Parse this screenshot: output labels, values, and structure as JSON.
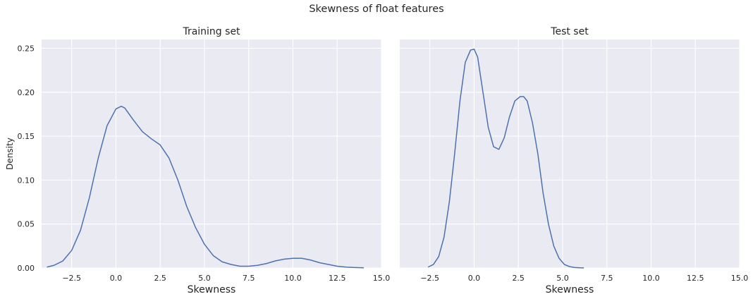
{
  "figure": {
    "suptitle": "Skewness of float features"
  },
  "colors": {
    "panel_bg": "#eaeaf2",
    "grid": "#ffffff",
    "line": "#4c72b0"
  },
  "chart_data": [
    {
      "type": "line",
      "title": "Training set",
      "xlabel": "Skewness",
      "ylabel": "Density",
      "xlim": [
        -4.2,
        15.0
      ],
      "ylim": [
        0.0,
        0.26
      ],
      "xticks": [
        -2.5,
        0.0,
        2.5,
        5.0,
        7.5,
        10.0,
        12.5,
        15.0
      ],
      "xtick_labels": [
        "−2.5",
        "0.0",
        "2.5",
        "5.0",
        "7.5",
        "10.0",
        "12.5",
        "15.0"
      ],
      "yticks": [
        0.0,
        0.05,
        0.1,
        0.15,
        0.2,
        0.25
      ],
      "ytick_labels": [
        "0.00",
        "0.05",
        "0.10",
        "0.15",
        "0.20",
        "0.25"
      ],
      "grid": true,
      "series": [
        {
          "x": [
            -3.9,
            -3.5,
            -3.0,
            -2.5,
            -2.0,
            -1.5,
            -1.0,
            -0.5,
            0.0,
            0.3,
            0.5,
            1.0,
            1.5,
            2.0,
            2.5,
            3.0,
            3.5,
            4.0,
            4.5,
            5.0,
            5.5,
            6.0,
            6.5,
            7.0,
            7.5,
            8.0,
            8.5,
            9.0,
            9.5,
            10.0,
            10.5,
            11.0,
            11.5,
            12.0,
            12.5,
            13.0,
            13.5,
            14.0
          ],
          "y": [
            0.001,
            0.003,
            0.008,
            0.02,
            0.043,
            0.08,
            0.125,
            0.162,
            0.181,
            0.184,
            0.182,
            0.168,
            0.155,
            0.147,
            0.14,
            0.125,
            0.1,
            0.07,
            0.046,
            0.027,
            0.014,
            0.007,
            0.004,
            0.002,
            0.002,
            0.003,
            0.005,
            0.008,
            0.01,
            0.011,
            0.011,
            0.009,
            0.006,
            0.004,
            0.002,
            0.001,
            0.0005,
            0.0002
          ]
        }
      ]
    },
    {
      "type": "line",
      "title": "Test set",
      "xlabel": "Skewness",
      "ylabel": "",
      "xlim": [
        -4.2,
        15.0
      ],
      "ylim": [
        0.0,
        0.26
      ],
      "xticks": [
        -2.5,
        0.0,
        2.5,
        5.0,
        7.5,
        10.0,
        12.5,
        15.0
      ],
      "xtick_labels": [
        "−2.5",
        "0.0",
        "2.5",
        "5.0",
        "7.5",
        "10.0",
        "12.5",
        "15.0"
      ],
      "yticks": [
        0.0,
        0.05,
        0.1,
        0.15,
        0.2,
        0.25
      ],
      "ytick_labels": [],
      "grid": true,
      "series": [
        {
          "x": [
            -2.6,
            -2.3,
            -2.0,
            -1.7,
            -1.4,
            -1.1,
            -0.8,
            -0.5,
            -0.2,
            0.0,
            0.2,
            0.5,
            0.8,
            1.1,
            1.4,
            1.7,
            2.0,
            2.3,
            2.6,
            2.8,
            3.0,
            3.3,
            3.6,
            3.9,
            4.2,
            4.5,
            4.8,
            5.1,
            5.4,
            5.7,
            6.0,
            6.2
          ],
          "y": [
            0.001,
            0.004,
            0.013,
            0.035,
            0.075,
            0.13,
            0.19,
            0.234,
            0.248,
            0.249,
            0.24,
            0.2,
            0.16,
            0.138,
            0.135,
            0.148,
            0.172,
            0.19,
            0.195,
            0.195,
            0.19,
            0.165,
            0.13,
            0.085,
            0.05,
            0.025,
            0.011,
            0.004,
            0.0015,
            0.0005,
            0.0002,
            0.0001
          ]
        }
      ]
    }
  ]
}
